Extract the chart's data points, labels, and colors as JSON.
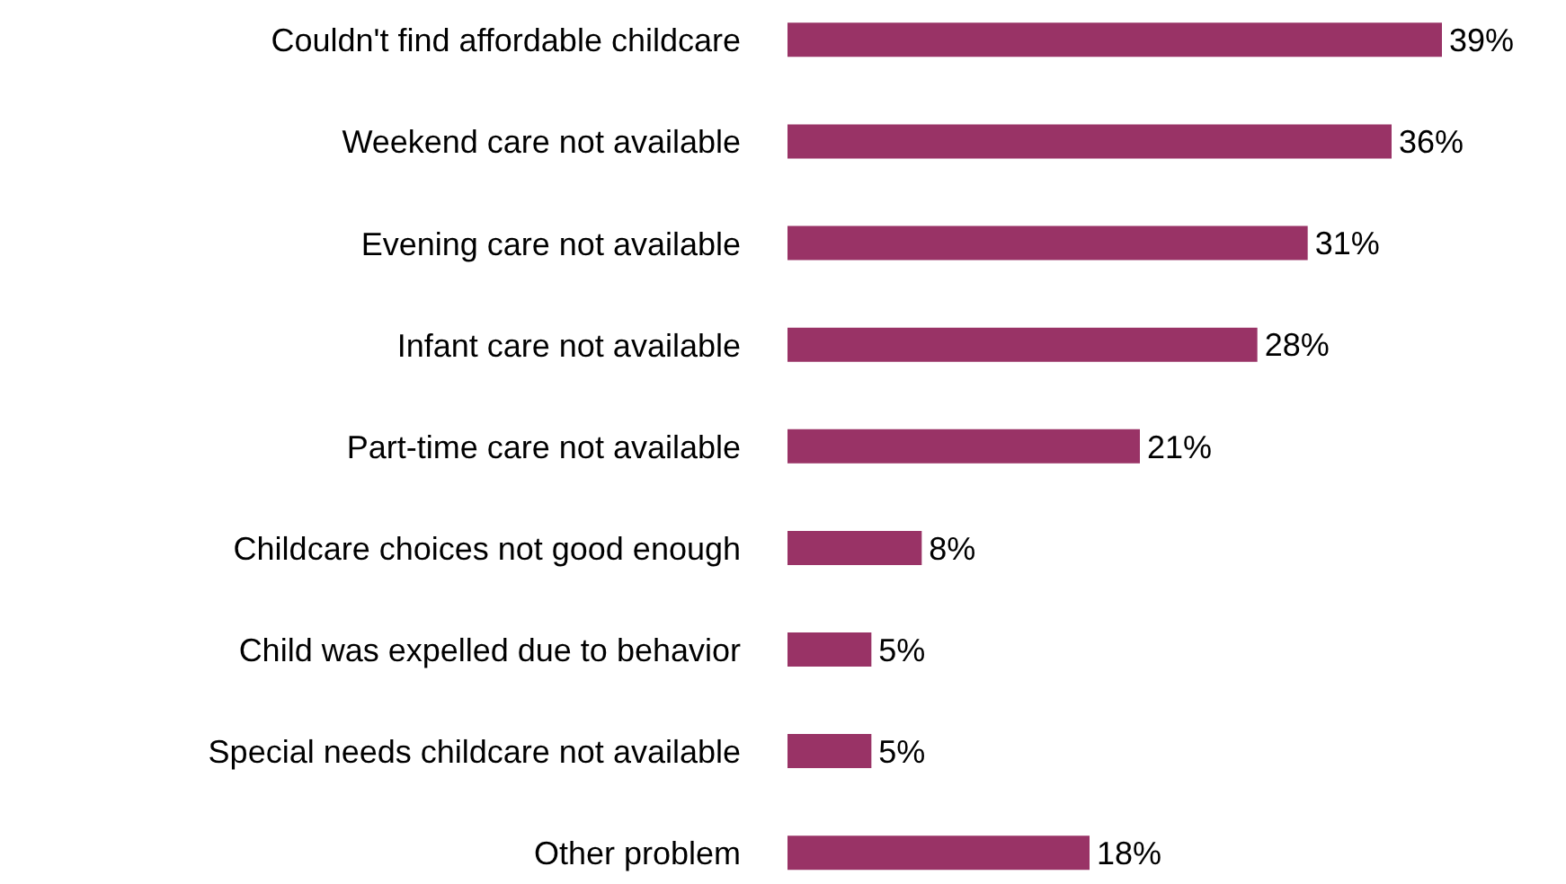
{
  "chart_data": {
    "type": "bar",
    "orientation": "horizontal",
    "relative": false,
    "categories": [
      "Couldn't find affordable childcare",
      "Weekend care not available",
      "Evening care not available",
      "Infant care not available",
      "Part-time care not available",
      "Childcare choices not good enough",
      "Child was expelled due to behavior",
      "Special needs childcare not available",
      "Other problem"
    ],
    "values": [
      39,
      36,
      31,
      28,
      21,
      8,
      5,
      5,
      18
    ],
    "value_labels": [
      "39%",
      "36%",
      "31%",
      "28%",
      "21%",
      "8%",
      "5%",
      "5%",
      "18%"
    ],
    "color": "#993366",
    "grid": false,
    "legend": false
  }
}
